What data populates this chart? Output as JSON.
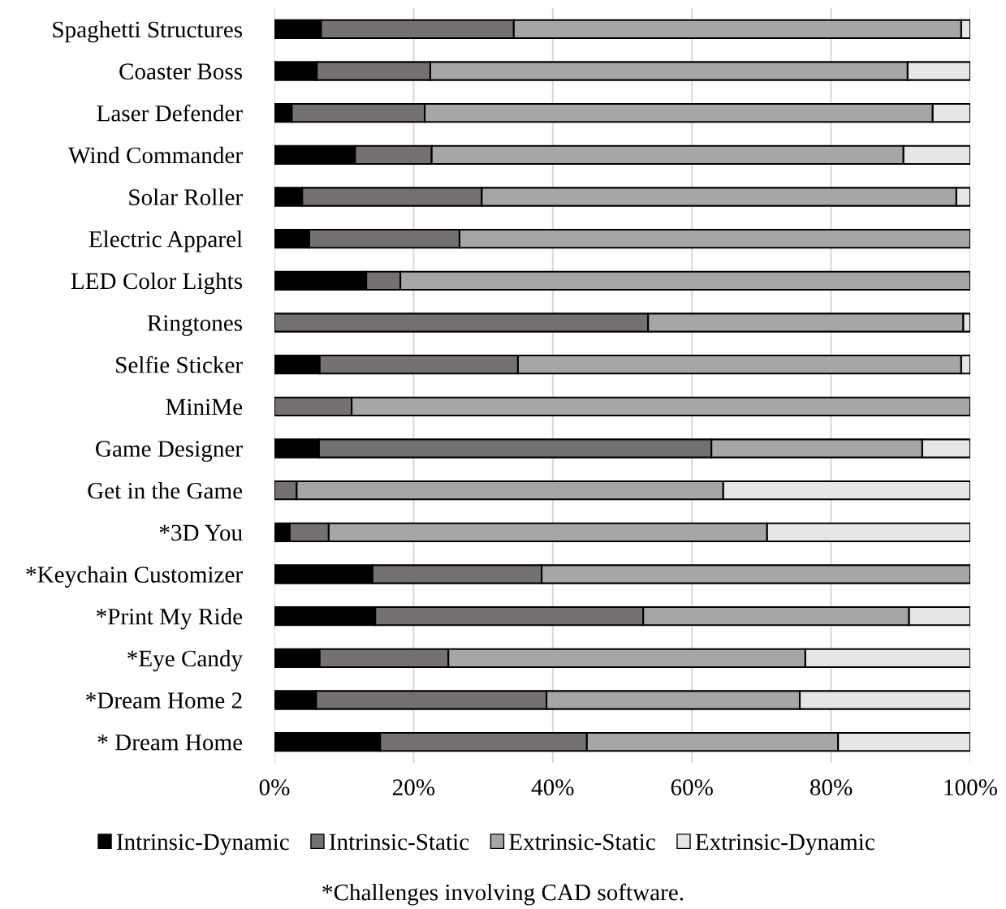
{
  "chart_data": {
    "type": "bar",
    "orientation": "horizontal",
    "stacked": true,
    "categories": [
      "Spaghetti Structures",
      "Coaster Boss",
      "Laser Defender",
      "Wind Commander",
      "Solar Roller",
      "Electric Apparel",
      "LED Color Lights",
      "Ringtones",
      "Selfie Sticker",
      "MiniMe",
      "Game Designer",
      "Get in the Game",
      "*3D You",
      "*Keychain Customizer",
      "*Print My Ride",
      "*Eye Candy",
      "*Dream Home 2",
      "* Dream Home"
    ],
    "series": [
      {
        "name": "Intrinsic-Dynamic",
        "color": "#000000",
        "values": [
          6.7,
          6.1,
          2.5,
          11.6,
          4.0,
          5.0,
          13.2,
          0,
          6.5,
          0,
          6.4,
          0,
          2.2,
          14.1,
          14.5,
          6.5,
          6.0,
          15.2
        ]
      },
      {
        "name": "Intrinsic-Static",
        "color": "#767171",
        "values": [
          27.7,
          16.3,
          19.1,
          11.0,
          25.8,
          21.6,
          4.9,
          53.7,
          28.5,
          11.1,
          56.4,
          3.2,
          5.6,
          24.3,
          38.5,
          18.5,
          33.1,
          29.7
        ]
      },
      {
        "name": "Extrinsic-Static",
        "color": "#a6a6a6",
        "values": [
          64.3,
          68.6,
          73.0,
          67.8,
          68.2,
          73.4,
          81.9,
          45.3,
          63.7,
          88.9,
          30.3,
          61.3,
          63.0,
          61.6,
          38.2,
          51.3,
          36.4,
          36.1
        ]
      },
      {
        "name": "Extrinsic-Dynamic",
        "color": "#e7e6e6",
        "values": [
          1.3,
          9.0,
          5.4,
          9.6,
          2.0,
          0,
          0,
          1.0,
          1.3,
          0,
          6.9,
          35.5,
          29.2,
          0,
          8.8,
          23.7,
          24.5,
          19.0
        ]
      }
    ],
    "xlim": [
      0,
      100
    ],
    "xticks": [
      {
        "value": 0,
        "label": "0%"
      },
      {
        "value": 20,
        "label": "20%"
      },
      {
        "value": 40,
        "label": "40%"
      },
      {
        "value": 60,
        "label": "60%"
      },
      {
        "value": 80,
        "label": "80%"
      },
      {
        "value": 100,
        "label": "100%"
      }
    ],
    "grid": "x",
    "legend": "bottom",
    "annotations": [
      "*Challenges involving CAD software."
    ]
  }
}
